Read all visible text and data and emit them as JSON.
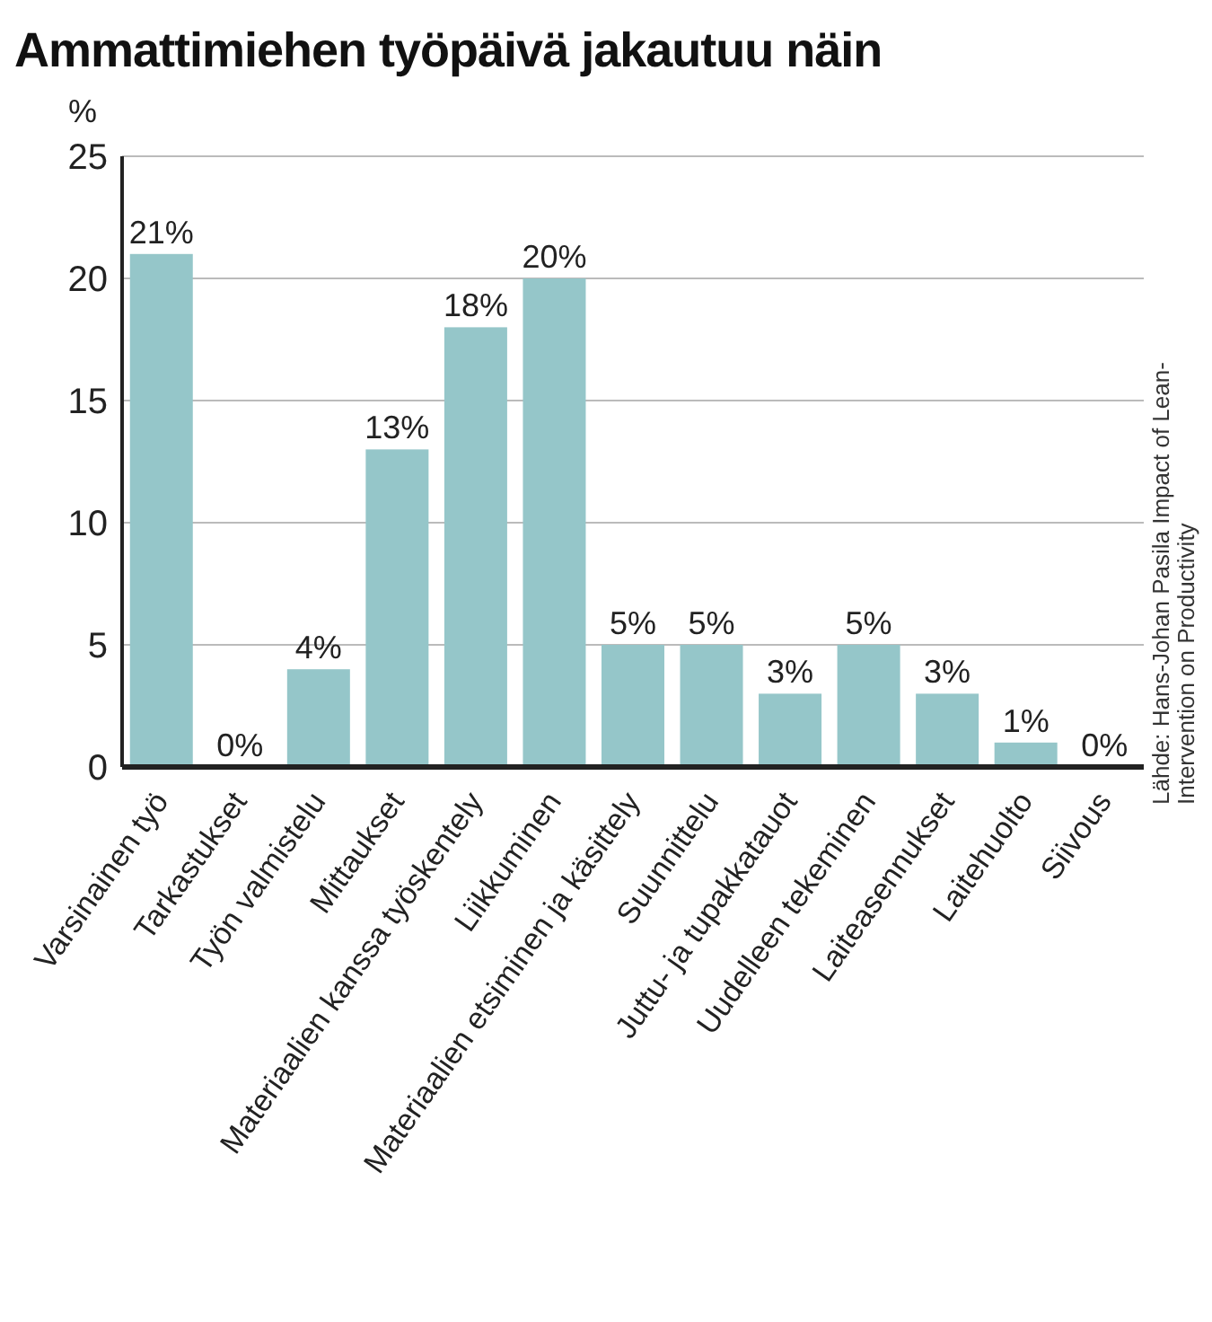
{
  "chart_data": {
    "type": "bar",
    "title": "Ammattimiehen työpäivä jakautuu näin",
    "ylabel": "%",
    "annotations": [
      "Lähde: Hans-Johan Pasila Impact of Lean-Intervention on Productivity"
    ],
    "categories": [
      "Varsinainen työ",
      "Tarkastukset",
      "Työn valmistelu",
      "Mittaukset",
      "Materiaalien kanssa työskentely",
      "Liikkuminen",
      "Materiaalien etsiminen ja käsittely",
      "Suunnittelu",
      "Juttu- ja tupakkatauot",
      "Uudelleen tekeminen",
      "Laiteasennukset",
      "Laitehuolto",
      "Siivous"
    ],
    "values": [
      21,
      0,
      4,
      13,
      18,
      20,
      5,
      5,
      3,
      5,
      3,
      1,
      0
    ],
    "value_labels": [
      "21%",
      "0%",
      "4%",
      "13%",
      "18%",
      "20%",
      "5%",
      "5%",
      "3%",
      "5%",
      "3%",
      "1%",
      "0%"
    ],
    "color": "#95c6c9",
    "ylim": [
      0,
      25
    ],
    "yticks": [
      0,
      5,
      10,
      15,
      20,
      25
    ],
    "grid": "y"
  }
}
